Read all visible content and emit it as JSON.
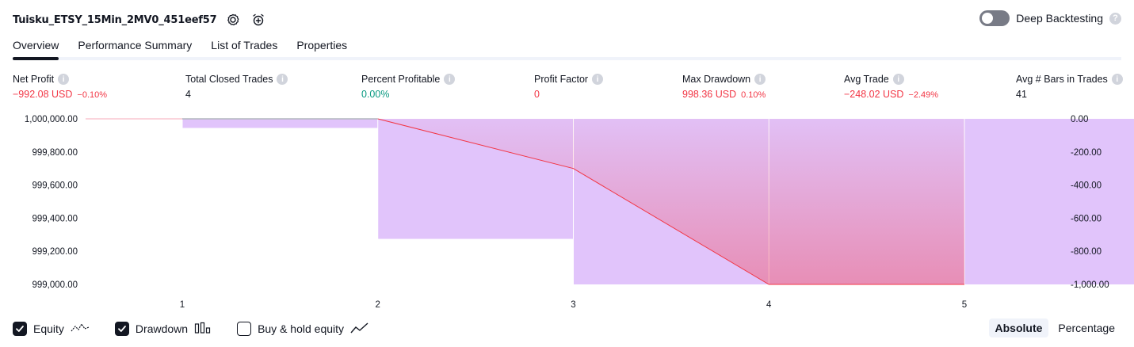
{
  "header": {
    "strategy_name": "Tuisku_ETSY_15Min_2MV0_451eef57",
    "settings_icon": "gear-icon",
    "add_alert_icon": "alarm-plus-icon",
    "deep_backtesting_label": "Deep Backtesting",
    "deep_backtesting_enabled": false
  },
  "tabs": [
    {
      "label": "Overview",
      "active": true
    },
    {
      "label": "Performance Summary",
      "active": false
    },
    {
      "label": "List of Trades",
      "active": false
    },
    {
      "label": "Properties",
      "active": false
    }
  ],
  "metrics": [
    {
      "label": "Net Profit",
      "value": "−992.08 USD",
      "pct": "−0.10%",
      "tone": "neg"
    },
    {
      "label": "Total Closed Trades",
      "value": "4",
      "pct": "",
      "tone": "neutral"
    },
    {
      "label": "Percent Profitable",
      "value": "0.00%",
      "pct": "",
      "tone": "pos"
    },
    {
      "label": "Profit Factor",
      "value": "0",
      "pct": "",
      "tone": "neg"
    },
    {
      "label": "Max Drawdown",
      "value": "998.36 USD",
      "pct": "0.10%",
      "tone": "neg"
    },
    {
      "label": "Avg Trade",
      "value": "−248.02 USD",
      "pct": "−2.49%",
      "tone": "neg"
    },
    {
      "label": "Avg # Bars in Trades",
      "value": "41",
      "pct": "",
      "tone": "neutral"
    }
  ],
  "chart_data": {
    "type": "line",
    "x_ticks": [
      "1",
      "2",
      "3",
      "4",
      "5"
    ],
    "left_axis": {
      "ticks": [
        "1,000,000.00",
        "999,800.00",
        "999,600.00",
        "999,400.00",
        "999,200.00",
        "999,000.00"
      ],
      "range": [
        999000,
        1000000
      ]
    },
    "right_axis": {
      "ticks": [
        "0.00",
        "-200.00",
        "-400.00",
        "-600.00",
        "-800.00",
        "-1,000.00"
      ],
      "range": [
        -1000,
        0
      ]
    },
    "equity": {
      "x": [
        1,
        2,
        3,
        4,
        5
      ],
      "y": [
        1000000,
        1000000,
        999700,
        999000,
        999000
      ]
    },
    "drawdown": {
      "x": [
        1.5,
        2.5,
        3.5,
        4.5,
        5.5
      ],
      "values": [
        -55,
        -725,
        -1000,
        -1000,
        -1000
      ]
    },
    "colors": {
      "equity_line": "#f23645",
      "equity_fill": "#f7a8b8",
      "drawdown_bar": "#e1c4fb",
      "prefill_line": "#b2b5be"
    }
  },
  "legend": {
    "equity": {
      "label": "Equity",
      "checked": true,
      "icon": "equity-line-icon"
    },
    "drawdown": {
      "label": "Drawdown",
      "checked": true,
      "icon": "bar-chart-icon"
    },
    "buy_hold": {
      "label": "Buy & hold equity",
      "checked": false,
      "icon": "trend-line-icon"
    }
  },
  "mode": {
    "absolute": "Absolute",
    "percentage": "Percentage",
    "selected": "absolute"
  }
}
